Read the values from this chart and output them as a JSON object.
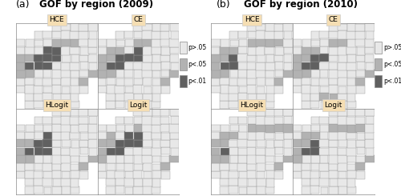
{
  "title_2009": "GOF by region (2009)",
  "title_2010": "GOF by region (2010)",
  "label_a": "(a)",
  "label_b": "(b)",
  "panel_labels": [
    "HCE",
    "CE",
    "HLogit",
    "Logit"
  ],
  "legend_labels": [
    "p>.05",
    "p<.05",
    "p<.01"
  ],
  "color_light": "#e8e8e8",
  "color_medium": "#b2b2b2",
  "color_dark": "#606060",
  "color_very_light": "#f0f0f0",
  "color_outline": "#aaaaaa",
  "color_bg": "#ffffff",
  "header_color": "#f5deb3",
  "title_fontsize": 8.5,
  "label_fontsize": 9,
  "header_fontsize": 6.5,
  "legend_fontsize": 5.5
}
